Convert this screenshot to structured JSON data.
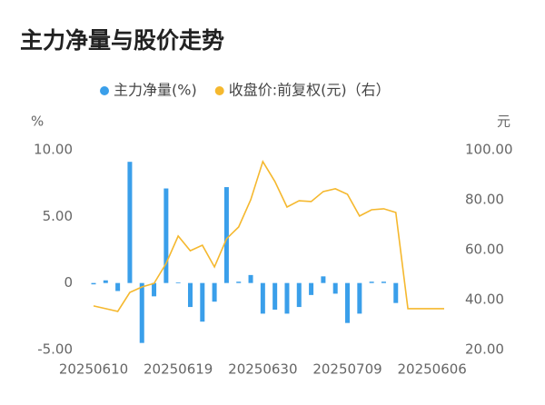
{
  "chart_data": {
    "type": "bar-line",
    "title": "主力净量与股价走势",
    "y_label": "%",
    "y2_label": "元",
    "categories": [
      "20250610",
      null,
      null,
      null,
      null,
      null,
      null,
      "20250619",
      null,
      null,
      null,
      null,
      null,
      null,
      "20250630",
      null,
      null,
      null,
      null,
      null,
      null,
      "20250709",
      null,
      null,
      null,
      null,
      null,
      null,
      "20250606",
      null
    ],
    "series": [
      {
        "name": "主力净量(%)",
        "color": "#3a9fea",
        "kind": "bar",
        "values": [
          -0.1,
          0.2,
          -0.6,
          9.1,
          -4.5,
          -1.0,
          7.1,
          0.05,
          -1.8,
          -2.9,
          -1.4,
          7.2,
          0.1,
          0.6,
          -2.3,
          -2.0,
          -2.3,
          -1.8,
          -0.9,
          0.5,
          -0.8,
          -3.0,
          -2.3,
          0.1,
          0.1,
          -1.5,
          null,
          null,
          null,
          null
        ]
      },
      {
        "name": "收盘价:前复权(元)（右）",
        "color": "#f5b82e",
        "kind": "line",
        "axis": "y2",
        "values": [
          37.5,
          36.4,
          35.3,
          42.9,
          45.1,
          46.5,
          54.5,
          65.5,
          59.6,
          61.8,
          53.1,
          64.4,
          69.1,
          80.0,
          95.3,
          87.3,
          77.1,
          79.6,
          79.3,
          83.3,
          84.4,
          82.2,
          73.5,
          76.0,
          76.4,
          74.9,
          36.4,
          36.4,
          36.4,
          36.4
        ]
      }
    ],
    "ylim": [
      -5,
      10
    ],
    "yticks": [
      {
        "value": -5,
        "label": "-5.00"
      },
      0,
      {
        "value": 5,
        "label": "5.00"
      },
      {
        "value": 10,
        "label": "10.00"
      }
    ],
    "y2lim": [
      20,
      100
    ],
    "y2ticks": [
      {
        "value": 20,
        "label": "20.00"
      },
      {
        "value": 40,
        "label": "40.00"
      },
      {
        "value": 60,
        "label": "60.00"
      },
      {
        "value": 80,
        "label": "80.00"
      },
      {
        "value": 100,
        "label": "100.00"
      }
    ]
  }
}
